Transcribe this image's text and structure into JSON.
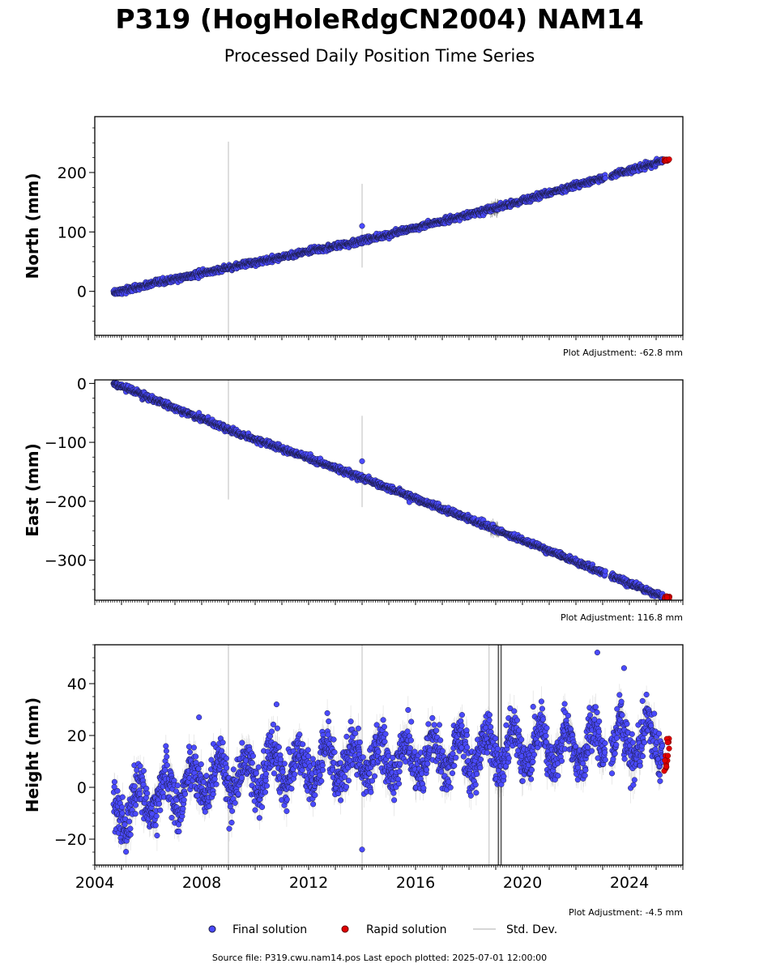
{
  "figure": {
    "title": "P319 (HogHoleRdgCN2004) NAM14",
    "subtitle": "Processed Daily Position Time Series",
    "source_line": "Source file: P319.cwu.nam14.pos  Last epoch plotted: 2025-07-01 12:00:00"
  },
  "legend": {
    "final": "Final solution",
    "rapid": "Rapid solution",
    "std": "Std. Dev."
  },
  "colors": {
    "final": "#4a4aff",
    "rapid": "#e00000",
    "marker_edge": "#1a1a40",
    "stddev_light": "#c8c8c8",
    "stddev_dark": "#555555"
  },
  "chart_data": [
    {
      "type": "scatter",
      "component": "north",
      "ylabel": "North (mm)",
      "adjustment": "Plot Adjustment: -62.8 mm",
      "xlim": [
        2004.0,
        2026.0
      ],
      "ylim": [
        -74,
        294
      ],
      "yticks": [
        0,
        100,
        200
      ],
      "x_start": 2004.7,
      "x_end": 2025.25,
      "trend": [
        [
          2004.7,
          -2
        ],
        [
          2009.0,
          40
        ],
        [
          2014.0,
          85
        ],
        [
          2019.0,
          140
        ],
        [
          2025.3,
          220
        ]
      ],
      "noise_mm": 2.5,
      "seasonal_mm": 0,
      "gaps": [
        [
          2023.1,
          2023.3
        ]
      ],
      "outliers": [
        {
          "x": 2014.0,
          "y": 110
        }
      ],
      "std_spikes": [
        {
          "x": 2009.0,
          "y_low": -74,
          "y_high": 252,
          "dark": false
        },
        {
          "x": 2014.0,
          "y_low": 40,
          "y_high": 181,
          "dark": false
        }
      ],
      "dense_std": [
        2018.8,
        2019.1
      ],
      "rapid": {
        "x_start": 2025.3,
        "x_end": 2025.5,
        "y_min": 219,
        "y_max": 223
      }
    },
    {
      "type": "scatter",
      "component": "east",
      "ylabel": "East (mm)",
      "adjustment": "Plot Adjustment: 116.8 mm",
      "xlim": [
        2004.0,
        2026.0
      ],
      "ylim": [
        -368,
        6
      ],
      "yticks": [
        0,
        -100,
        -200,
        -300
      ],
      "x_start": 2004.7,
      "x_end": 2025.25,
      "trend": [
        [
          2004.7,
          0
        ],
        [
          2009.0,
          -78
        ],
        [
          2014.0,
          -160
        ],
        [
          2019.0,
          -248
        ],
        [
          2025.3,
          -363
        ]
      ],
      "noise_mm": 2.5,
      "seasonal_mm": 0,
      "gaps": [
        [
          2023.1,
          2023.3
        ]
      ],
      "outliers": [
        {
          "x": 2014.0,
          "y": -132
        }
      ],
      "std_spikes": [
        {
          "x": 2009.0,
          "y_low": -197,
          "y_high": 6,
          "dark": false
        },
        {
          "x": 2014.0,
          "y_low": -210,
          "y_high": -55,
          "dark": false
        }
      ],
      "dense_std": [
        2018.8,
        2019.1
      ],
      "rapid": {
        "x_start": 2025.3,
        "x_end": 2025.5,
        "y_min": -366,
        "y_max": -361
      }
    },
    {
      "type": "scatter",
      "component": "height",
      "ylabel": "Height (mm)",
      "adjustment": "Plot Adjustment: -4.5 mm",
      "xlim": [
        2004.0,
        2026.0
      ],
      "ylim": [
        -30,
        55
      ],
      "yticks": [
        -20,
        0,
        20,
        40
      ],
      "xticks": [
        2004,
        2008,
        2012,
        2016,
        2020,
        2024
      ],
      "x_start": 2004.7,
      "x_end": 2025.25,
      "trend": [
        [
          2004.7,
          -10
        ],
        [
          2008.0,
          3
        ],
        [
          2012.0,
          8
        ],
        [
          2016.0,
          12
        ],
        [
          2020.0,
          15
        ],
        [
          2025.3,
          18
        ]
      ],
      "noise_mm": 4.5,
      "seasonal_mm": 7,
      "gaps": [
        [
          2023.1,
          2023.3
        ]
      ],
      "outliers": [
        {
          "x": 2014.0,
          "y": -24
        },
        {
          "x": 2022.8,
          "y": 52
        },
        {
          "x": 2023.8,
          "y": 46
        },
        {
          "x": 2010.8,
          "y": 32
        },
        {
          "x": 2007.9,
          "y": 27
        }
      ],
      "std_spikes": [
        {
          "x": 2009.0,
          "y_low": -30,
          "y_high": 55,
          "dark": false
        },
        {
          "x": 2014.0,
          "y_low": -30,
          "y_high": 55,
          "dark": false
        },
        {
          "x": 2018.75,
          "y_low": -30,
          "y_high": 55,
          "dark": false
        },
        {
          "x": 2019.1,
          "y_low": -30,
          "y_high": 55,
          "dark": true
        },
        {
          "x": 2019.2,
          "y_low": -30,
          "y_high": 55,
          "dark": true
        }
      ],
      "dense_std": null,
      "rapid": {
        "x_start": 2025.3,
        "x_end": 2025.5,
        "y_min": 5,
        "y_max": 21
      }
    }
  ]
}
